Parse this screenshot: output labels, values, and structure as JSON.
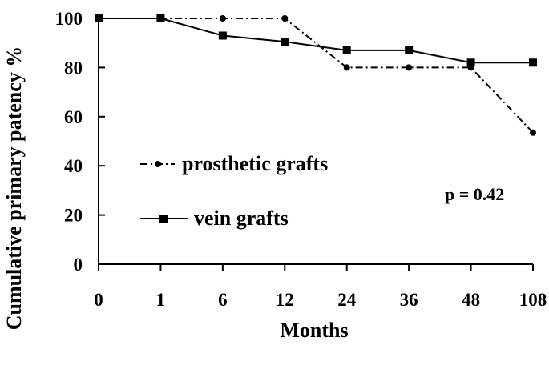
{
  "chart_data": {
    "type": "line",
    "categories": [
      "0",
      "1",
      "6",
      "12",
      "24",
      "36",
      "48",
      "108"
    ],
    "xlabel": "Months",
    "ylabel": "Cumulative primary patency %",
    "ylim": [
      0,
      100
    ],
    "yticks": [
      "0",
      "20",
      "40",
      "60",
      "80",
      "100"
    ],
    "grid": false,
    "legend_position": "left-middle",
    "series": [
      {
        "name": "prosthetic grafts",
        "marker": "circle",
        "line_style": "dash-dot",
        "values": [
          100,
          100,
          100,
          100,
          80,
          80,
          80,
          53.5
        ]
      },
      {
        "name": "vein grafts",
        "marker": "square",
        "line_style": "solid",
        "values": [
          100,
          100,
          93,
          90.5,
          87,
          87,
          82,
          82
        ]
      }
    ],
    "annotations": [
      {
        "text": "p = 0.42"
      }
    ]
  }
}
